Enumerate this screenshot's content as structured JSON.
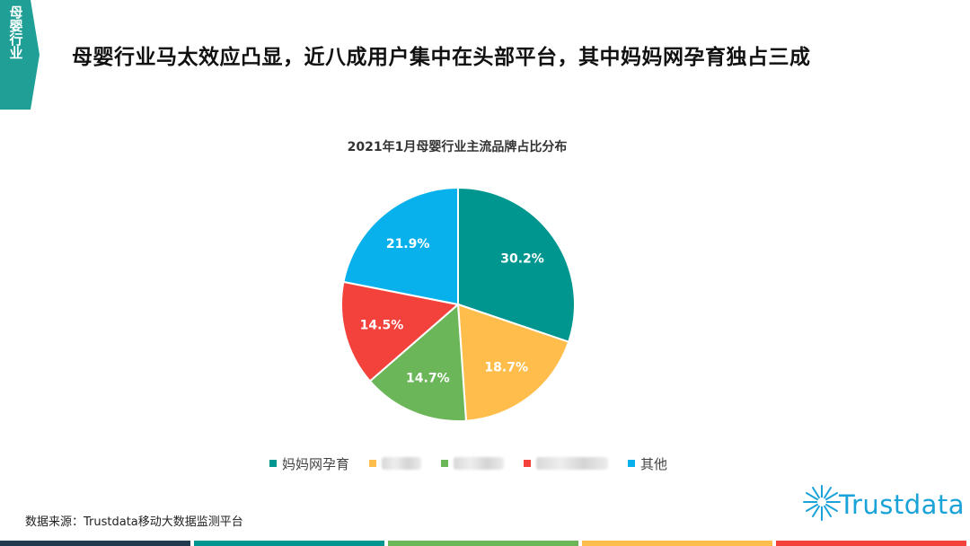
{
  "side_tab": {
    "label": "母婴行业"
  },
  "page_title": "母婴行业马太效应凸显，近八成用户集中在头部平台，其中妈妈网孕育独占三成",
  "colors": {
    "teal": "#009690",
    "yellow": "#ffbe4c",
    "green": "#6cb65a",
    "red": "#f3413b",
    "blue": "#09b1ec",
    "tab": "#1f9f95"
  },
  "chart_data": {
    "type": "pie",
    "title": "2021年1月母婴行业主流品牌占比分布",
    "slices": [
      {
        "label": "妈妈网孕育",
        "value": 30.2,
        "value_label": "30.2%",
        "color": "#009690",
        "label_visible": true
      },
      {
        "label": "",
        "value": 18.7,
        "value_label": "18.7%",
        "color": "#ffbe4c",
        "label_visible": false
      },
      {
        "label": "",
        "value": 14.7,
        "value_label": "14.7%",
        "color": "#6cb65a",
        "label_visible": false
      },
      {
        "label": "",
        "value": 14.5,
        "value_label": "14.5%",
        "color": "#f3413b",
        "label_visible": false
      },
      {
        "label": "其他",
        "value": 21.9,
        "value_label": "21.9%",
        "color": "#09b1ec",
        "label_visible": true
      }
    ],
    "legend_position": "bottom"
  },
  "source_note": "数据来源：Trustdata移动大数据监测平台",
  "brand": {
    "name": "Trustdata",
    "icon": "sunburst-logo-icon"
  },
  "bottom_bar_colors": [
    "#1f3b4d",
    "#009690",
    "#6cb65a",
    "#ffbe4c",
    "#f3413b"
  ]
}
